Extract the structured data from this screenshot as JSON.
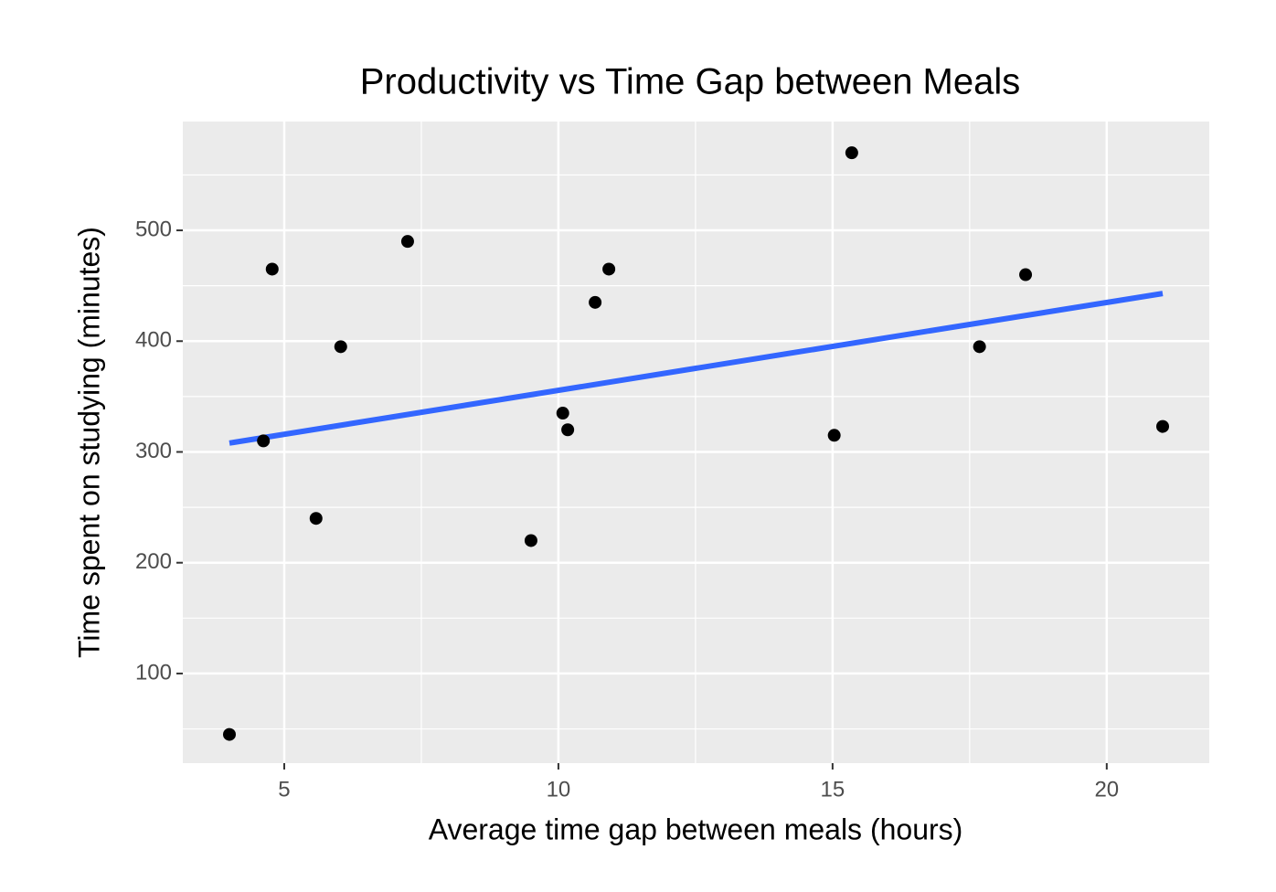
{
  "chart_data": {
    "type": "scatter",
    "title": "Productivity vs Time Gap between Meals",
    "x_label": "Average time gap between meals (hours)",
    "y_label": "Time spent on studying (minutes)",
    "x": [
      4.0,
      4.62,
      4.78,
      5.58,
      6.03,
      7.25,
      9.5,
      10.08,
      10.17,
      10.67,
      10.92,
      15.03,
      15.35,
      17.68,
      18.52,
      21.02
    ],
    "y": [
      45,
      310,
      465,
      240,
      395,
      490,
      220,
      335,
      320,
      435,
      465,
      315,
      570,
      395,
      460,
      323
    ],
    "color": "#000000",
    "trend_line": {
      "x": [
        4.0,
        21.02
      ],
      "y": [
        308,
        443
      ],
      "color": "#3366ff"
    },
    "xlim": [
      3.15,
      21.87
    ],
    "ylim": [
      19.1,
      598.2
    ],
    "xticks": [
      5,
      10,
      15,
      20
    ],
    "yticks": [
      100,
      200,
      300,
      400,
      500
    ],
    "xminor": [
      7.5,
      12.5,
      17.5
    ],
    "yminor": [
      50,
      150,
      250,
      350,
      450,
      550
    ],
    "grid": true
  }
}
